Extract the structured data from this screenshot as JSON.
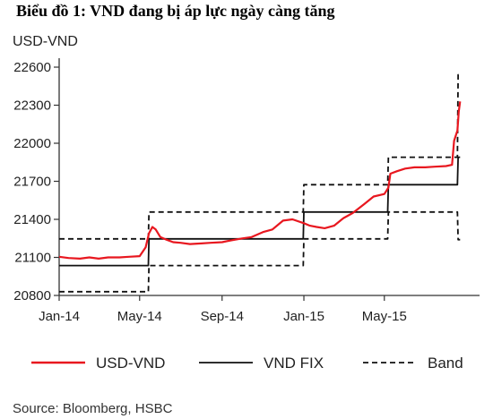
{
  "page": {
    "title": "Biểu đồ 1: VND đang bị áp lực ngày càng tăng",
    "source": "Source: Bloomberg, HSBC"
  },
  "chart_data": {
    "type": "line",
    "title": "Biểu đồ 1: VND đang bị áp lực ngày càng tăng",
    "ylabel": "USD-VND",
    "xlabel": "",
    "ylim": [
      20800,
      22600
    ],
    "xlim": [
      "2014-01-01",
      "2015-09-20"
    ],
    "y_ticks": [
      20800,
      21100,
      21400,
      21700,
      22000,
      22300,
      22600
    ],
    "x_ticks": [
      {
        "label": "Jan-14",
        "date": "2014-01-01"
      },
      {
        "label": "May-14",
        "date": "2014-05-01"
      },
      {
        "label": "Sep-14",
        "date": "2014-09-01"
      },
      {
        "label": "Jan-15",
        "date": "2015-01-01"
      },
      {
        "label": "May-15",
        "date": "2015-05-01"
      }
    ],
    "grid": false,
    "legend_position": "bottom",
    "series": [
      {
        "name": "USD-VND",
        "color": "#e8171f",
        "style": "solid",
        "points": [
          [
            "2014-01-01",
            21105
          ],
          [
            "2014-01-15",
            21095
          ],
          [
            "2014-02-01",
            21090
          ],
          [
            "2014-02-15",
            21100
          ],
          [
            "2014-03-01",
            21090
          ],
          [
            "2014-03-15",
            21100
          ],
          [
            "2014-04-01",
            21100
          ],
          [
            "2014-04-15",
            21105
          ],
          [
            "2014-05-01",
            21110
          ],
          [
            "2014-05-10",
            21180
          ],
          [
            "2014-05-15",
            21290
          ],
          [
            "2014-05-20",
            21340
          ],
          [
            "2014-05-25",
            21320
          ],
          [
            "2014-06-01",
            21260
          ],
          [
            "2014-06-10",
            21240
          ],
          [
            "2014-06-20",
            21220
          ],
          [
            "2014-07-01",
            21215
          ],
          [
            "2014-07-15",
            21205
          ],
          [
            "2014-08-01",
            21210
          ],
          [
            "2014-08-15",
            21215
          ],
          [
            "2014-09-01",
            21220
          ],
          [
            "2014-09-15",
            21235
          ],
          [
            "2014-10-01",
            21250
          ],
          [
            "2014-10-15",
            21260
          ],
          [
            "2014-11-01",
            21300
          ],
          [
            "2014-11-15",
            21320
          ],
          [
            "2014-12-01",
            21390
          ],
          [
            "2014-12-15",
            21400
          ],
          [
            "2015-01-01",
            21370
          ],
          [
            "2015-01-10",
            21350
          ],
          [
            "2015-01-20",
            21340
          ],
          [
            "2015-02-01",
            21330
          ],
          [
            "2015-02-15",
            21350
          ],
          [
            "2015-03-01",
            21410
          ],
          [
            "2015-03-15",
            21450
          ],
          [
            "2015-04-01",
            21520
          ],
          [
            "2015-04-15",
            21580
          ],
          [
            "2015-05-01",
            21600
          ],
          [
            "2015-05-07",
            21650
          ],
          [
            "2015-05-10",
            21760
          ],
          [
            "2015-05-20",
            21780
          ],
          [
            "2015-06-01",
            21800
          ],
          [
            "2015-06-15",
            21810
          ],
          [
            "2015-07-01",
            21810
          ],
          [
            "2015-07-15",
            21815
          ],
          [
            "2015-08-01",
            21820
          ],
          [
            "2015-08-10",
            21830
          ],
          [
            "2015-08-13",
            22020
          ],
          [
            "2015-08-18",
            22100
          ],
          [
            "2015-08-20",
            22250
          ],
          [
            "2015-08-22",
            22330
          ]
        ]
      },
      {
        "name": "VND FIX",
        "color": "#111111",
        "style": "solid",
        "points": [
          [
            "2014-01-01",
            21036
          ],
          [
            "2014-05-14",
            21036
          ],
          [
            "2014-05-15",
            21246
          ],
          [
            "2014-12-31",
            21246
          ],
          [
            "2015-01-01",
            21458
          ],
          [
            "2015-05-06",
            21458
          ],
          [
            "2015-05-07",
            21673
          ],
          [
            "2015-08-18",
            21673
          ],
          [
            "2015-08-19",
            21890
          ],
          [
            "2015-08-22",
            21890
          ]
        ]
      },
      {
        "name": "Band",
        "color": "#111111",
        "style": "dashed",
        "upper": [
          [
            "2014-01-01",
            21246
          ],
          [
            "2014-05-14",
            21246
          ],
          [
            "2014-05-15",
            21458
          ],
          [
            "2014-12-31",
            21458
          ],
          [
            "2015-01-01",
            21673
          ],
          [
            "2015-05-06",
            21673
          ],
          [
            "2015-05-07",
            21890
          ],
          [
            "2015-08-18",
            21890
          ],
          [
            "2015-08-19",
            22540
          ],
          [
            "2015-08-22",
            22540
          ]
        ],
        "lower": [
          [
            "2014-01-01",
            20830
          ],
          [
            "2014-05-14",
            20830
          ],
          [
            "2014-05-15",
            21036
          ],
          [
            "2014-12-31",
            21036
          ],
          [
            "2015-01-01",
            21246
          ],
          [
            "2015-05-06",
            21246
          ],
          [
            "2015-05-07",
            21458
          ],
          [
            "2015-08-18",
            21458
          ],
          [
            "2015-08-19",
            21240
          ],
          [
            "2015-08-22",
            21240
          ]
        ]
      }
    ]
  }
}
